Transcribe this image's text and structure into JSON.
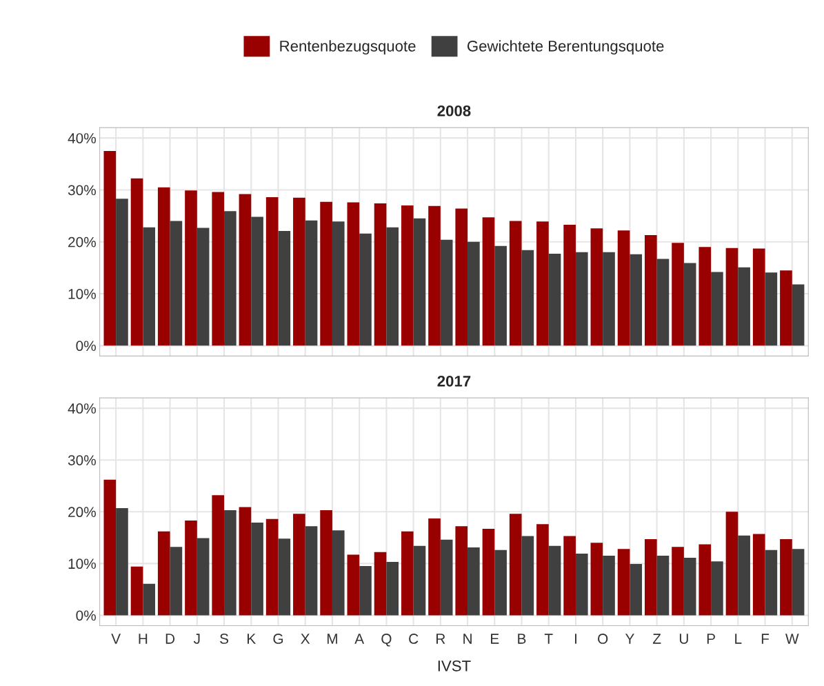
{
  "chart_data": [
    {
      "type": "bar",
      "title": "2008",
      "categories": [
        null,
        null,
        null,
        null,
        null,
        null,
        null,
        null,
        null,
        null,
        null,
        null,
        null,
        null,
        null,
        null,
        null,
        null,
        null,
        null,
        null,
        null,
        null,
        null,
        null,
        null
      ],
      "series": [
        {
          "name": "Rentenbezugsquote",
          "color": "#990000",
          "values": [
            37.5,
            32.2,
            30.5,
            29.9,
            29.6,
            29.2,
            28.6,
            28.5,
            27.7,
            27.6,
            27.4,
            27.0,
            26.9,
            26.4,
            24.7,
            24.0,
            23.9,
            23.3,
            22.6,
            22.2,
            21.3,
            19.8,
            19.0,
            18.8,
            18.7,
            14.5
          ]
        },
        {
          "name": "Gewichtete Berentungsquote",
          "color": "#404040",
          "values": [
            28.3,
            22.8,
            24.0,
            22.7,
            25.9,
            24.8,
            22.1,
            24.1,
            23.9,
            21.6,
            22.8,
            24.5,
            20.4,
            20.0,
            19.2,
            18.4,
            17.7,
            18.0,
            18.0,
            17.6,
            16.7,
            15.9,
            14.2,
            15.1,
            14.1,
            11.8
          ]
        }
      ],
      "ylim": [
        -2,
        42
      ],
      "yticks": [
        {
          "value": 0,
          "label": "0%"
        },
        {
          "value": 10,
          "label": "10%"
        },
        {
          "value": 20,
          "label": "20%"
        },
        {
          "value": 30,
          "label": "30%"
        },
        {
          "value": 40,
          "label": "40%"
        }
      ],
      "grid": true,
      "legend": "top",
      "tick_labels": "y"
    },
    {
      "type": "bar",
      "title": "2017",
      "xlabel": "IVST",
      "categories": [
        "V",
        "H",
        "D",
        "J",
        "S",
        "K",
        "G",
        "X",
        "M",
        "A",
        "Q",
        "C",
        "R",
        "N",
        "E",
        "B",
        "T",
        "I",
        "O",
        "Y",
        "Z",
        "U",
        "P",
        "L",
        "F",
        "W"
      ],
      "series": [
        {
          "color": "#990000",
          "values": [
            26.2,
            9.4,
            16.2,
            18.3,
            23.2,
            20.9,
            18.6,
            19.6,
            20.3,
            11.7,
            12.2,
            16.2,
            18.7,
            17.2,
            16.7,
            19.6,
            17.6,
            15.3,
            14.0,
            12.8,
            14.7,
            13.2,
            13.7,
            20.0,
            15.7,
            14.7
          ]
        },
        {
          "color": "#404040",
          "values": [
            20.7,
            6.1,
            13.2,
            14.9,
            20.3,
            17.9,
            14.8,
            17.2,
            16.4,
            9.5,
            10.3,
            13.4,
            14.6,
            13.1,
            12.6,
            15.3,
            13.4,
            11.9,
            11.5,
            9.9,
            11.5,
            11.1,
            10.4,
            15.4,
            12.6,
            12.8
          ]
        }
      ],
      "ylim": [
        -2,
        42
      ],
      "yticks": [
        {
          "value": 0,
          "label": "0%"
        },
        {
          "value": 10,
          "label": "10%"
        },
        {
          "value": 20,
          "label": "20%"
        },
        {
          "value": 30,
          "label": "30%"
        },
        {
          "value": 40,
          "label": "40%"
        }
      ],
      "grid": true
    }
  ]
}
